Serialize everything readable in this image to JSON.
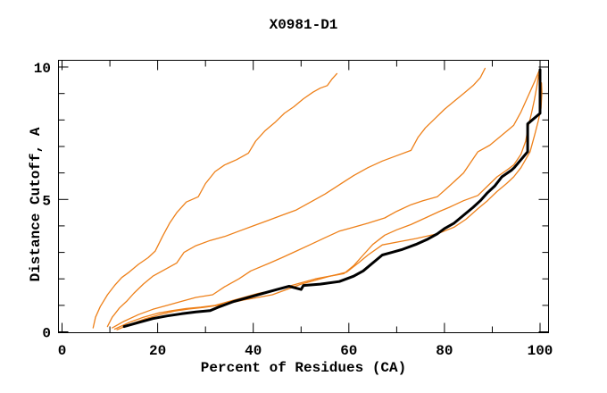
{
  "chart_data": {
    "type": "line",
    "title": "X0981-D1",
    "xlabel": "Percent of Residues (CA)",
    "ylabel": "Distance Cutoff, A",
    "xlim": [
      0,
      100
    ],
    "ylim": [
      0,
      10
    ],
    "grid": false,
    "legend": "none",
    "frame": "box-with-inward-ticks",
    "x_major_ticks": [
      0,
      20,
      40,
      60,
      80,
      100
    ],
    "x_minor_ticks": [
      10,
      30,
      50,
      70,
      90
    ],
    "x_tick_labels": [
      "0",
      "20",
      "40",
      "60",
      "80",
      "100"
    ],
    "y_major_ticks": [
      0,
      5,
      10
    ],
    "y_minor_ticks": [
      1,
      2,
      3,
      4,
      6,
      7,
      8,
      9
    ],
    "y_tick_labels": [
      "0",
      "5",
      "10"
    ],
    "colors": {
      "model_curve": "#ee8019",
      "target_curve": "#000000",
      "frame": "#000000",
      "background": "#ffffff"
    },
    "series": [
      {
        "name": "model-curve-1",
        "role": "model",
        "points": [
          [
            6.5,
            0.15
          ],
          [
            7,
            0.55
          ],
          [
            8,
            0.95
          ],
          [
            9.5,
            1.4
          ],
          [
            11,
            1.75
          ],
          [
            12.5,
            2.05
          ],
          [
            14,
            2.25
          ],
          [
            16,
            2.55
          ],
          [
            18,
            2.8
          ],
          [
            19.5,
            3.05
          ],
          [
            21,
            3.6
          ],
          [
            22.5,
            4.1
          ],
          [
            24,
            4.5
          ],
          [
            26,
            4.9
          ],
          [
            28.5,
            5.1
          ],
          [
            30,
            5.6
          ],
          [
            32,
            6.05
          ],
          [
            34,
            6.3
          ],
          [
            36.5,
            6.5
          ],
          [
            39,
            6.75
          ],
          [
            40.5,
            7.2
          ],
          [
            42.5,
            7.6
          ],
          [
            44.5,
            7.9
          ],
          [
            46.5,
            8.25
          ],
          [
            48.5,
            8.5
          ],
          [
            50.5,
            8.8
          ],
          [
            52.5,
            9.05
          ],
          [
            54,
            9.2
          ],
          [
            55.5,
            9.3
          ],
          [
            56.5,
            9.55
          ],
          [
            57.5,
            9.75
          ]
        ]
      },
      {
        "name": "model-curve-2",
        "role": "model",
        "points": [
          [
            9.5,
            0.2
          ],
          [
            10.5,
            0.55
          ],
          [
            12,
            0.9
          ],
          [
            13.5,
            1.15
          ],
          [
            15,
            1.45
          ],
          [
            17,
            1.8
          ],
          [
            19,
            2.1
          ],
          [
            21.5,
            2.35
          ],
          [
            24,
            2.6
          ],
          [
            25.5,
            3.0
          ],
          [
            28,
            3.25
          ],
          [
            31,
            3.45
          ],
          [
            34,
            3.6
          ],
          [
            37,
            3.8
          ],
          [
            40,
            4.0
          ],
          [
            43,
            4.2
          ],
          [
            46,
            4.4
          ],
          [
            49,
            4.6
          ],
          [
            52,
            4.9
          ],
          [
            55,
            5.2
          ],
          [
            58,
            5.55
          ],
          [
            61,
            5.9
          ],
          [
            64,
            6.2
          ],
          [
            67,
            6.45
          ],
          [
            70,
            6.65
          ],
          [
            73,
            6.85
          ],
          [
            74.5,
            7.35
          ],
          [
            76,
            7.7
          ],
          [
            78,
            8.05
          ],
          [
            80,
            8.4
          ],
          [
            82,
            8.7
          ],
          [
            84,
            9.0
          ],
          [
            86,
            9.3
          ],
          [
            87.5,
            9.6
          ],
          [
            88.5,
            9.95
          ]
        ]
      },
      {
        "name": "model-curve-3",
        "role": "model",
        "points": [
          [
            10.5,
            0.15
          ],
          [
            13,
            0.4
          ],
          [
            16,
            0.65
          ],
          [
            19,
            0.85
          ],
          [
            22,
            1.0
          ],
          [
            25,
            1.15
          ],
          [
            28,
            1.3
          ],
          [
            31.5,
            1.4
          ],
          [
            34,
            1.7
          ],
          [
            37,
            2.0
          ],
          [
            39.5,
            2.3
          ],
          [
            43.5,
            2.6
          ],
          [
            46,
            2.8
          ],
          [
            49,
            3.05
          ],
          [
            52,
            3.3
          ],
          [
            55,
            3.55
          ],
          [
            58,
            3.8
          ],
          [
            61,
            3.95
          ],
          [
            64,
            4.1
          ],
          [
            67.5,
            4.3
          ],
          [
            70,
            4.55
          ],
          [
            73,
            4.8
          ],
          [
            75.5,
            4.95
          ],
          [
            78.5,
            5.1
          ],
          [
            81,
            5.5
          ],
          [
            84,
            6.0
          ],
          [
            87,
            6.8
          ],
          [
            89.5,
            7.05
          ],
          [
            91.5,
            7.35
          ],
          [
            93.5,
            7.65
          ],
          [
            94.5,
            7.8
          ],
          [
            96,
            8.3
          ],
          [
            97.5,
            8.9
          ],
          [
            99,
            9.5
          ],
          [
            99.8,
            9.85
          ]
        ]
      },
      {
        "name": "model-curve-4",
        "role": "model",
        "points": [
          [
            11,
            0.1
          ],
          [
            14,
            0.35
          ],
          [
            17,
            0.55
          ],
          [
            20,
            0.7
          ],
          [
            23,
            0.8
          ],
          [
            26,
            0.88
          ],
          [
            29,
            0.93
          ],
          [
            32,
            1.0
          ],
          [
            35,
            1.15
          ],
          [
            38,
            1.3
          ],
          [
            41,
            1.45
          ],
          [
            44,
            1.55
          ],
          [
            47,
            1.7
          ],
          [
            50,
            1.85
          ],
          [
            53,
            2.0
          ],
          [
            56,
            2.1
          ],
          [
            59,
            2.2
          ],
          [
            61,
            2.5
          ],
          [
            63,
            2.9
          ],
          [
            65,
            3.3
          ],
          [
            67.5,
            3.65
          ],
          [
            70,
            3.85
          ],
          [
            73,
            4.05
          ],
          [
            76,
            4.3
          ],
          [
            79,
            4.55
          ],
          [
            81,
            4.7
          ],
          [
            84,
            4.95
          ],
          [
            87,
            5.15
          ],
          [
            89,
            5.5
          ],
          [
            91,
            5.85
          ],
          [
            93,
            6.1
          ],
          [
            94.5,
            6.3
          ],
          [
            96,
            6.7
          ],
          [
            97,
            7.2
          ],
          [
            97.6,
            7.8
          ],
          [
            98.2,
            8.25
          ],
          [
            98.8,
            8.75
          ],
          [
            99.3,
            9.25
          ],
          [
            99.7,
            9.7
          ]
        ]
      },
      {
        "name": "model-curve-5",
        "role": "model",
        "points": [
          [
            11.5,
            0.08
          ],
          [
            14.5,
            0.3
          ],
          [
            17.5,
            0.5
          ],
          [
            20.5,
            0.65
          ],
          [
            23.5,
            0.78
          ],
          [
            26.5,
            0.86
          ],
          [
            29.5,
            0.92
          ],
          [
            32,
            0.98
          ],
          [
            35,
            1.08
          ],
          [
            38,
            1.2
          ],
          [
            41,
            1.3
          ],
          [
            44,
            1.4
          ],
          [
            47,
            1.6
          ],
          [
            50,
            1.8
          ],
          [
            53,
            1.95
          ],
          [
            56,
            2.1
          ],
          [
            59.5,
            2.25
          ],
          [
            62,
            2.6
          ],
          [
            64,
            2.9
          ],
          [
            67,
            3.28
          ],
          [
            71,
            3.42
          ],
          [
            74,
            3.52
          ],
          [
            78.5,
            3.7
          ],
          [
            82,
            3.95
          ],
          [
            84.5,
            4.25
          ],
          [
            87,
            4.65
          ],
          [
            89,
            4.95
          ],
          [
            91,
            5.3
          ],
          [
            93,
            5.6
          ],
          [
            94.5,
            5.85
          ],
          [
            96,
            6.2
          ],
          [
            97.9,
            6.8
          ],
          [
            98.9,
            7.45
          ],
          [
            99.6,
            7.95
          ],
          [
            100.2,
            8.45
          ],
          [
            100.4,
            9.05
          ],
          [
            100.3,
            9.4
          ]
        ]
      },
      {
        "name": "target-curve",
        "role": "target",
        "points": [
          [
            13,
            0.2
          ],
          [
            16,
            0.35
          ],
          [
            19,
            0.5
          ],
          [
            22,
            0.6
          ],
          [
            25,
            0.68
          ],
          [
            28,
            0.75
          ],
          [
            31,
            0.8
          ],
          [
            33,
            0.95
          ],
          [
            36,
            1.15
          ],
          [
            39,
            1.3
          ],
          [
            42,
            1.45
          ],
          [
            45,
            1.6
          ],
          [
            47.5,
            1.72
          ],
          [
            50,
            1.6
          ],
          [
            50.5,
            1.75
          ],
          [
            54,
            1.8
          ],
          [
            58,
            1.9
          ],
          [
            61,
            2.1
          ],
          [
            63,
            2.3
          ],
          [
            65,
            2.6
          ],
          [
            67,
            2.9
          ],
          [
            69,
            3.0
          ],
          [
            71,
            3.1
          ],
          [
            74,
            3.3
          ],
          [
            76.5,
            3.5
          ],
          [
            78.5,
            3.7
          ],
          [
            80,
            3.9
          ],
          [
            82,
            4.1
          ],
          [
            84,
            4.4
          ],
          [
            86,
            4.7
          ],
          [
            87.5,
            4.95
          ],
          [
            89,
            5.25
          ],
          [
            90.5,
            5.5
          ],
          [
            92,
            5.85
          ],
          [
            94,
            6.1
          ],
          [
            94.6,
            6.2
          ],
          [
            96,
            6.5
          ],
          [
            97.4,
            6.8
          ],
          [
            97.4,
            7.85
          ],
          [
            100,
            8.25
          ],
          [
            100,
            9.9
          ]
        ]
      }
    ],
    "line_widths": {
      "model": 1.3,
      "target": 3
    }
  }
}
